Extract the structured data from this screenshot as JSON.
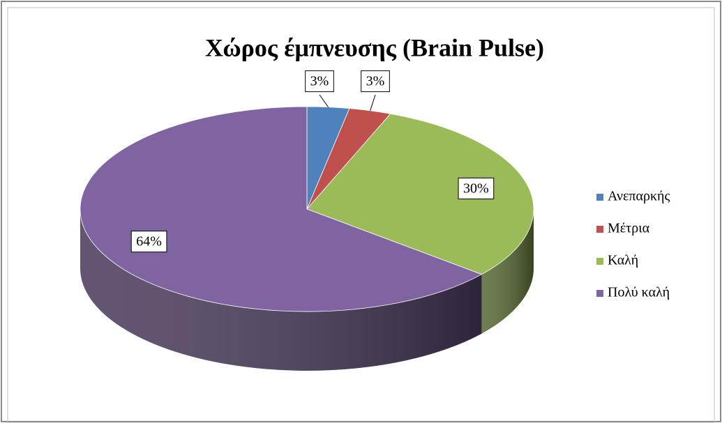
{
  "chart_data": {
    "type": "pie",
    "title": "Χώρος έμπνευσης (Brain Pulse)",
    "categories": [
      "Ανεπαρκής",
      "Μέτρια",
      "Καλή",
      "Πολύ καλή"
    ],
    "values": [
      3,
      3,
      30,
      64
    ],
    "value_labels": [
      "3%",
      "3%",
      "30%",
      "64%"
    ],
    "colors": [
      "#4f81bd",
      "#c0504d",
      "#9bbb59",
      "#8064a2"
    ],
    "legend": "right"
  }
}
